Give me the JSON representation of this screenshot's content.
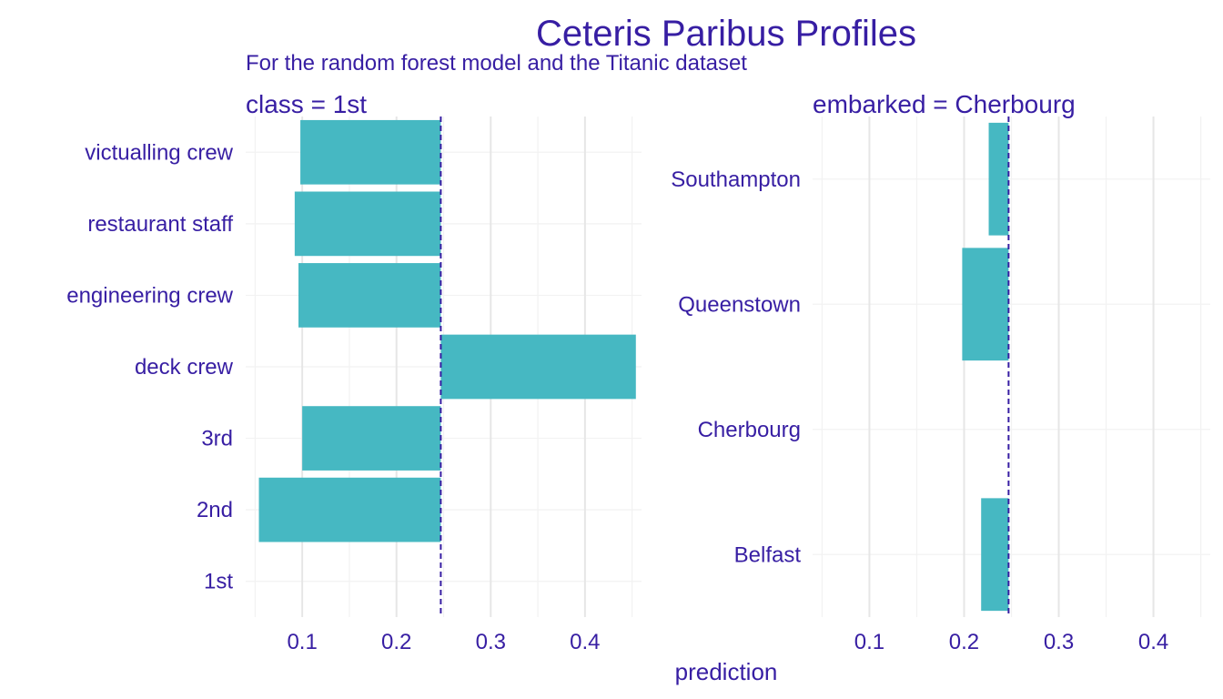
{
  "chart_data": {
    "type": "bar",
    "title": "Ceteris Paribus Profiles",
    "subtitle": "For the random forest model and the Titanic dataset",
    "xlabel": "prediction",
    "ylabel": "",
    "orientation": "horizontal",
    "baseline": 0.247,
    "xlim": [
      0.04,
      0.46
    ],
    "x_ticks": [
      0.1,
      0.2,
      0.3,
      0.4
    ],
    "x_tick_labels": [
      "0.1",
      "0.2",
      "0.3",
      "0.4"
    ],
    "grid": true,
    "legend": "none",
    "panels": [
      {
        "label": "class = 1st",
        "categories": [
          "victualling crew",
          "restaurant staff",
          "engineering crew",
          "deck crew",
          "3rd",
          "2nd",
          "1st"
        ],
        "values": [
          0.098,
          0.092,
          0.096,
          0.454,
          0.1,
          0.054,
          0.247
        ]
      },
      {
        "label": "embarked = Cherbourg",
        "categories": [
          "Southampton",
          "Queenstown",
          "Cherbourg",
          "Belfast"
        ],
        "values": [
          0.226,
          0.198,
          0.247,
          0.218
        ]
      }
    ],
    "colors": {
      "bar": "#46b8c2",
      "text": "#371ea3",
      "baseline": "#371ea3",
      "grid_major": "#e6e6e6",
      "grid_minor": "#f2f2f2"
    }
  }
}
